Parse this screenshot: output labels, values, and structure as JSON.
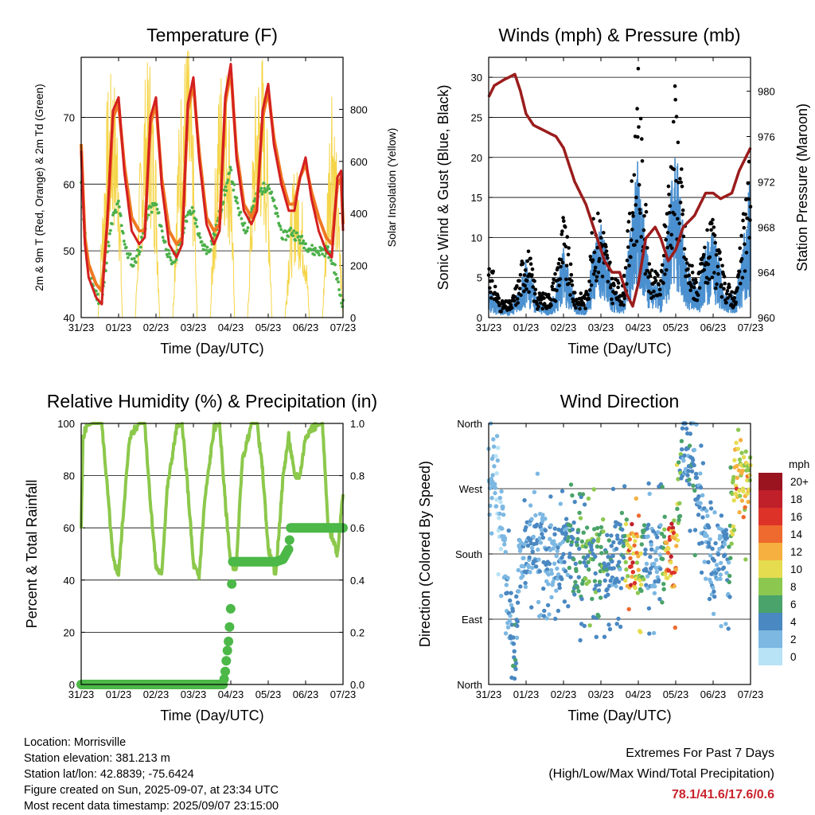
{
  "chart_data": [
    {
      "type": "line",
      "title": "Temperature (F)",
      "xlabel": "Time (Day/UTC)",
      "ylabel": "2m & 9m T (Red, Orange) & 2m Td (Green)",
      "ylabel_right": "Solar Insolation (Yellow)",
      "x_ticks": [
        "31/23",
        "01/23",
        "02/23",
        "03/23",
        "04/23",
        "05/23",
        "06/23",
        "07/23"
      ],
      "ylim": [
        40,
        79
      ],
      "y_ticks": [
        40,
        50,
        60,
        70
      ],
      "ylim_right": [
        0,
        1000
      ],
      "y_ticks_right": [
        0,
        200,
        400,
        600,
        800
      ],
      "grid": true,
      "colors": {
        "t2m": "#d42020",
        "t9m": "#f07822",
        "td2m": "#4cb04a",
        "solar": "#f5d54a"
      },
      "series": [
        {
          "name": "2m T",
          "x_days": [
            0,
            0.1,
            0.2,
            0.4,
            0.55,
            0.7,
            0.85,
            1.0,
            1.15,
            1.35,
            1.55,
            1.7,
            1.85,
            2.0,
            2.15,
            2.35,
            2.55,
            2.7,
            2.85,
            3.0,
            3.15,
            3.35,
            3.55,
            3.7,
            3.85,
            4.0,
            4.15,
            4.35,
            4.55,
            4.7,
            4.85,
            5.0,
            5.15,
            5.35,
            5.55,
            5.7,
            5.85,
            6.0,
            6.15,
            6.35,
            6.55,
            6.7,
            6.85,
            6.95,
            7.0
          ],
          "values": [
            65,
            51,
            46,
            43,
            42,
            55,
            71,
            73,
            62,
            53,
            51,
            52,
            70,
            73,
            60,
            51,
            49,
            51,
            72,
            76,
            64,
            54,
            51,
            53,
            73,
            78,
            64,
            56,
            54,
            56,
            71,
            75,
            66,
            60,
            56,
            56,
            61,
            64,
            58,
            53,
            50,
            49,
            61,
            62,
            53
          ]
        },
        {
          "name": "9m T",
          "x_days": [
            0,
            0.1,
            0.2,
            0.4,
            0.55,
            0.7,
            0.85,
            1.0,
            1.15,
            1.35,
            1.55,
            1.7,
            1.85,
            2.0,
            2.15,
            2.35,
            2.55,
            2.7,
            2.85,
            3.0,
            3.15,
            3.35,
            3.55,
            3.7,
            3.85,
            4.0,
            4.15,
            4.35,
            4.55,
            4.7,
            4.85,
            5.0,
            5.15,
            5.35,
            5.55,
            5.7,
            5.85,
            6.0,
            6.15,
            6.35,
            6.55,
            6.7,
            6.85,
            6.95,
            7.0
          ],
          "values": [
            66,
            52,
            48,
            45,
            44,
            54,
            70,
            72,
            63,
            55,
            53,
            53,
            69,
            72,
            61,
            53,
            51,
            52,
            71,
            75,
            65,
            55,
            53,
            54,
            72,
            77,
            65,
            57,
            55,
            57,
            70,
            74,
            67,
            61,
            57,
            57,
            61,
            63,
            59,
            55,
            52,
            51,
            60,
            61,
            54
          ]
        },
        {
          "name": "2m Td",
          "x_days": [
            0,
            0.15,
            0.35,
            0.55,
            0.7,
            0.85,
            1.0,
            1.2,
            1.4,
            1.6,
            1.8,
            2.0,
            2.2,
            2.4,
            2.6,
            2.8,
            3.0,
            3.2,
            3.4,
            3.6,
            3.8,
            4.0,
            4.2,
            4.4,
            4.6,
            4.8,
            5.0,
            5.2,
            5.4,
            5.6,
            5.8,
            6.0,
            6.2,
            6.4,
            6.6,
            6.8,
            6.9,
            7.0
          ],
          "values": [
            60,
            49,
            44,
            42,
            50,
            55,
            57,
            50,
            48,
            51,
            56,
            57,
            52,
            48,
            50,
            55,
            56,
            51,
            50,
            53,
            58,
            62,
            56,
            53,
            57,
            59,
            60,
            56,
            52,
            53,
            52,
            51,
            50,
            50,
            50,
            47,
            44,
            42
          ]
        },
        {
          "name": "Solar",
          "x_days": [
            0,
            0.45,
            0.55,
            0.7,
            0.85,
            1.0,
            1.1,
            1.45,
            1.55,
            1.7,
            1.85,
            2.0,
            2.1,
            2.45,
            2.55,
            2.7,
            2.85,
            3.0,
            3.1,
            3.45,
            3.55,
            3.7,
            3.85,
            4.0,
            4.1,
            4.45,
            4.55,
            4.7,
            4.85,
            5.0,
            5.1,
            5.45,
            5.55,
            5.7,
            5.85,
            6.0,
            6.1,
            6.45,
            6.55,
            6.7,
            6.85,
            6.95,
            7.0
          ],
          "values": [
            0,
            0,
            350,
            800,
            900,
            700,
            0,
            0,
            500,
            850,
            950,
            600,
            0,
            0,
            550,
            900,
            1000,
            650,
            0,
            0,
            450,
            880,
            960,
            700,
            0,
            0,
            500,
            900,
            950,
            600,
            0,
            0,
            300,
            550,
            500,
            300,
            0,
            0,
            400,
            950,
            500,
            200,
            0
          ]
        }
      ]
    },
    {
      "type": "scatter",
      "title": "Winds (mph) & Pressure (mb)",
      "xlabel": "Time (Day/UTC)",
      "ylabel": "Sonic Wind & Gust (Blue, Black)",
      "ylabel_right": "Station Pressure (Maroon)",
      "x_ticks": [
        "31/23",
        "01/23",
        "02/23",
        "03/23",
        "04/23",
        "05/23",
        "06/23",
        "07/23"
      ],
      "ylim": [
        0,
        32.5
      ],
      "y_ticks": [
        0,
        5,
        10,
        15,
        20,
        25,
        30
      ],
      "ylim_right": [
        960,
        983
      ],
      "y_ticks_right": [
        960,
        964,
        968,
        972,
        976,
        980
      ],
      "grid": true,
      "colors": {
        "wind": "#4a90d0",
        "gust": "#000000",
        "pressure": "#9b1c1c"
      },
      "series": [
        {
          "name": "Sonic Wind",
          "x_days": [
            0,
            0.3,
            0.6,
            0.8,
            1.0,
            1.3,
            1.6,
            1.8,
            2.0,
            2.3,
            2.6,
            2.8,
            3.0,
            3.3,
            3.6,
            3.8,
            4.0,
            4.3,
            4.6,
            4.8,
            5.0,
            5.3,
            5.6,
            5.8,
            6.0,
            6.3,
            6.6,
            6.8,
            7.0
          ],
          "values": [
            3,
            1,
            1,
            3,
            6,
            2,
            1,
            3,
            7,
            2,
            1,
            7,
            10,
            3,
            2,
            9,
            16,
            4,
            3,
            10,
            17,
            5,
            3,
            7,
            9,
            3,
            2,
            7,
            14
          ]
        },
        {
          "name": "Gust",
          "x_days": [
            0,
            0.3,
            0.6,
            0.8,
            1.0,
            1.3,
            1.6,
            1.8,
            2.0,
            2.3,
            2.6,
            2.8,
            3.0,
            3.3,
            3.6,
            3.8,
            4.0,
            4.3,
            4.6,
            4.8,
            5.0,
            5.3,
            5.6,
            5.8,
            6.0,
            6.3,
            6.6,
            6.8,
            7.0
          ],
          "values": [
            8,
            2,
            2,
            5,
            10,
            3,
            3,
            6,
            13,
            3,
            3,
            12,
            14,
            5,
            4,
            15,
            30,
            6,
            5,
            18,
            30,
            8,
            5,
            10,
            12,
            5,
            3,
            12,
            23
          ]
        },
        {
          "name": "Pressure",
          "x_days": [
            0,
            0.15,
            0.4,
            0.7,
            0.85,
            1.0,
            1.2,
            1.5,
            1.8,
            2.0,
            2.3,
            2.6,
            2.9,
            3.1,
            3.3,
            3.5,
            3.7,
            3.85,
            4.0,
            4.2,
            4.45,
            4.6,
            4.8,
            5.0,
            5.2,
            5.5,
            5.8,
            6.0,
            6.2,
            6.5,
            6.7,
            6.85,
            7.0
          ],
          "values": [
            979.5,
            980.5,
            981,
            981.5,
            980,
            978,
            977,
            976.5,
            976,
            975,
            972,
            970,
            967,
            965,
            964,
            964,
            962,
            961,
            963,
            967,
            968,
            967,
            965,
            966,
            968,
            969,
            971,
            971,
            970.5,
            971,
            973,
            974,
            975
          ]
        }
      ]
    },
    {
      "type": "line",
      "title": "Relative Humidity (%) & Precipitation (in)",
      "xlabel": "Time (Day/UTC)",
      "ylabel": "Percent & Total Rainfall",
      "x_ticks": [
        "31/23",
        "01/23",
        "02/23",
        "03/23",
        "04/23",
        "05/23",
        "06/23",
        "07/23"
      ],
      "ylim": [
        0,
        100
      ],
      "y_ticks": [
        0,
        20,
        40,
        60,
        80,
        100
      ],
      "ylim_right": [
        0,
        1
      ],
      "y_ticks_right": [
        "0.0",
        "0.2",
        "0.4",
        "0.6",
        "0.8",
        "1.0"
      ],
      "grid": true,
      "colors": {
        "rh": "#8cc84b",
        "precip": "#4cb848"
      },
      "series": [
        {
          "name": "Relative Humidity",
          "x_days": [
            0,
            0.05,
            0.15,
            0.3,
            0.55,
            0.7,
            0.85,
            1.0,
            1.15,
            1.3,
            1.55,
            1.7,
            1.85,
            2.0,
            2.15,
            2.3,
            2.55,
            2.7,
            2.85,
            3.0,
            3.15,
            3.3,
            3.55,
            3.7,
            3.85,
            4.0,
            4.15,
            4.3,
            4.55,
            4.7,
            4.85,
            5.0,
            5.2,
            5.4,
            5.55,
            5.7,
            5.85,
            6.0,
            6.15,
            6.3,
            6.45,
            6.6,
            6.75,
            6.85,
            7.0
          ],
          "values": [
            60,
            95,
            99,
            100,
            100,
            75,
            48,
            42,
            70,
            95,
            100,
            100,
            70,
            45,
            42,
            75,
            98,
            100,
            75,
            46,
            41,
            70,
            98,
            100,
            70,
            46,
            45,
            85,
            100,
            100,
            82,
            52,
            42,
            80,
            95,
            80,
            80,
            95,
            98,
            99,
            100,
            60,
            55,
            50,
            74
          ]
        },
        {
          "name": "Total Rainfall",
          "x_days": [
            0,
            3.8,
            3.85,
            3.9,
            3.95,
            4.0,
            4.05,
            4.3,
            4.5,
            4.8,
            5.0,
            5.2,
            5.4,
            5.55,
            5.6,
            5.7,
            5.9,
            6.2,
            6.6,
            7.0
          ],
          "values": [
            0,
            0,
            0.05,
            0.12,
            0.18,
            0.3,
            0.47,
            0.47,
            0.47,
            0.47,
            0.47,
            0.47,
            0.48,
            0.52,
            0.6,
            0.6,
            0.6,
            0.6,
            0.6,
            0.6
          ]
        }
      ]
    },
    {
      "type": "scatter",
      "title": "Wind Direction",
      "xlabel": "Time (Day/UTC)",
      "ylabel": "Direction (Colored By Speed)",
      "x_ticks": [
        "31/23",
        "01/23",
        "02/23",
        "03/23",
        "04/23",
        "05/23",
        "06/23",
        "07/23"
      ],
      "y_ticks": [
        "North",
        "East",
        "South",
        "West",
        "North"
      ],
      "ylim": [
        0,
        360
      ],
      "grid": true,
      "colorbar": {
        "title": "mph",
        "labels": [
          "0",
          "2",
          "4",
          "6",
          "8",
          "10",
          "12",
          "14",
          "16",
          "18",
          "20+"
        ],
        "colors": [
          "#b8e2f5",
          "#7db8e2",
          "#4a88c2",
          "#4aa36a",
          "#8cc850",
          "#e6dc50",
          "#f5b040",
          "#ee6a2e",
          "#dc3228",
          "#c0202a",
          "#9a1420"
        ]
      },
      "series": [
        {
          "name": "Direction",
          "x_days": [
            0,
            0.1,
            0.2,
            0.3,
            0.4,
            0.5,
            0.6,
            0.7,
            0.8,
            0.9,
            1.0,
            1.2,
            1.4,
            1.6,
            1.8,
            2.0,
            2.2,
            2.4,
            2.6,
            2.8,
            3.0,
            3.2,
            3.4,
            3.6,
            3.8,
            3.9,
            4.0,
            4.2,
            4.4,
            4.6,
            4.8,
            4.9,
            5.0,
            5.2,
            5.4,
            5.6,
            5.8,
            6.0,
            6.2,
            6.4,
            6.6,
            6.7,
            6.8,
            6.9,
            7.0
          ],
          "direction_deg": [
            290,
            300,
            285,
            240,
            200,
            120,
            90,
            40,
            150,
            200,
            175,
            190,
            200,
            180,
            170,
            185,
            175,
            160,
            180,
            170,
            175,
            165,
            180,
            175,
            180,
            175,
            170,
            180,
            170,
            175,
            175,
            180,
            170,
            330,
            310,
            260,
            200,
            160,
            190,
            160,
            300,
            280,
            270,
            285,
            300
          ],
          "speed": [
            2,
            2,
            1,
            1,
            2,
            3,
            4,
            5,
            3,
            3,
            4,
            4,
            3,
            3,
            3,
            4,
            5,
            6,
            7,
            6,
            7,
            5,
            4,
            5,
            16,
            14,
            12,
            4,
            3,
            4,
            14,
            16,
            12,
            3,
            5,
            4,
            3,
            4,
            3,
            4,
            13,
            12,
            11,
            12,
            10
          ]
        }
      ]
    }
  ],
  "station": {
    "location": "Location: Morrisville",
    "elevation": "Station elevation: 381.213 m",
    "latlon": "Station lat/lon: 42.8839; -75.6424",
    "created": "Figure created on Sun, 2025-09-07, at 23:34 UTC",
    "latest": "Most recent data timestamp: 2025/09/07 23:15:00"
  },
  "extremes": {
    "title": "Extremes For Past 7 Days",
    "subtitle": "(High/Low/Max Wind/Total Precipitation)",
    "values": "78.1/41.6/17.6/0.6"
  }
}
